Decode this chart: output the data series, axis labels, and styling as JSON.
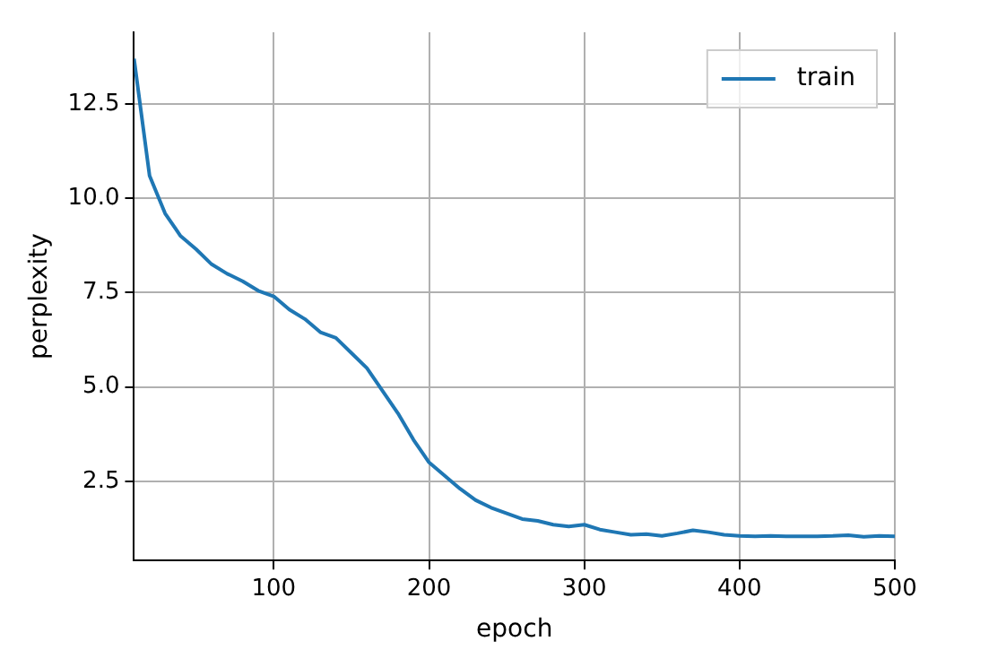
{
  "chart_data": {
    "type": "line",
    "xlabel": "epoch",
    "ylabel": "perplexity",
    "x": [
      10,
      20,
      30,
      40,
      50,
      60,
      70,
      80,
      90,
      100,
      110,
      120,
      130,
      140,
      150,
      160,
      170,
      180,
      190,
      200,
      210,
      220,
      230,
      240,
      250,
      260,
      270,
      280,
      290,
      300,
      310,
      320,
      330,
      340,
      350,
      360,
      370,
      380,
      390,
      400,
      410,
      420,
      430,
      440,
      450,
      460,
      470,
      480,
      490,
      500
    ],
    "series": [
      {
        "name": "train",
        "color": "#1f77b4",
        "values": [
          13.7,
          10.6,
          9.6,
          9.0,
          8.65,
          8.25,
          8.0,
          7.8,
          7.55,
          7.4,
          7.05,
          6.8,
          6.45,
          6.3,
          5.9,
          5.5,
          4.9,
          4.3,
          3.6,
          3.0,
          2.65,
          2.3,
          2.0,
          1.8,
          1.65,
          1.5,
          1.45,
          1.35,
          1.3,
          1.35,
          1.22,
          1.15,
          1.08,
          1.1,
          1.05,
          1.12,
          1.2,
          1.15,
          1.08,
          1.05,
          1.04,
          1.05,
          1.04,
          1.04,
          1.04,
          1.05,
          1.07,
          1.03,
          1.05,
          1.04
        ]
      }
    ],
    "xlim": [
      10,
      500
    ],
    "xticks": [
      100,
      200,
      300,
      400,
      500
    ],
    "ylim": [
      0.4,
      14.4
    ],
    "yticks": [
      2.5,
      {
        "value": 5,
        "label": "5.0"
      },
      7.5,
      {
        "value": 10,
        "label": "10.0"
      },
      12.5
    ],
    "grid": true,
    "legend": "top right"
  }
}
